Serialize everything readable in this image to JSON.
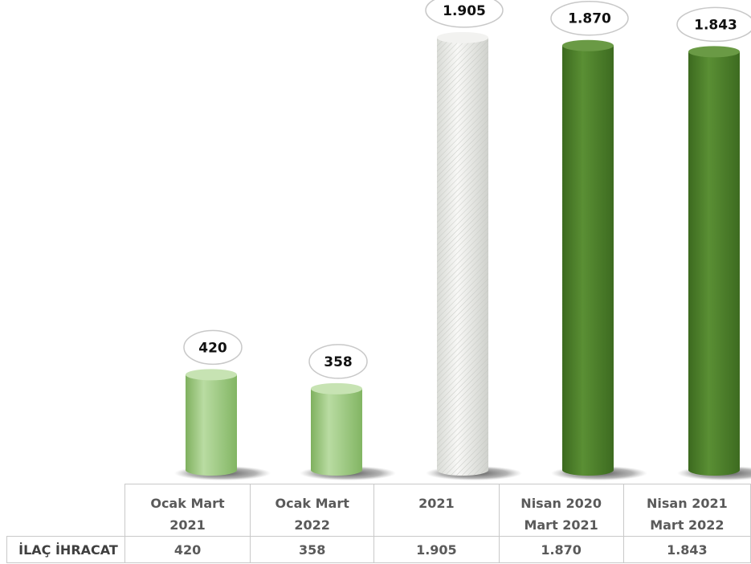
{
  "chart_data": {
    "type": "bar",
    "categories": [
      "Ocak Mart 2021",
      "Ocak Mart 2022",
      "2021",
      "Nisan 2020 Mart 2021",
      "Nisan 2021 Mart 2022"
    ],
    "category_lines": [
      [
        "Ocak Mart",
        "2021"
      ],
      [
        "Ocak Mart",
        "2022"
      ],
      [
        "2021",
        ""
      ],
      [
        "Nisan 2020",
        "Mart 2021"
      ],
      [
        "Nisan 2021",
        "Mart 2022"
      ]
    ],
    "series": [
      {
        "name": "İLAÇ İHRACAT",
        "values": [
          420,
          358,
          1905,
          1870,
          1843
        ],
        "value_labels": [
          "420",
          "358",
          "1.905",
          "1.870",
          "1.843"
        ]
      }
    ],
    "bar_colors": [
      "#a9d08e",
      "#a9d08e",
      "#e4e6e0",
      "#4e7f2b",
      "#4e7f2b"
    ],
    "ylim": [
      0,
      2000
    ],
    "grid": false,
    "data_table": true
  }
}
